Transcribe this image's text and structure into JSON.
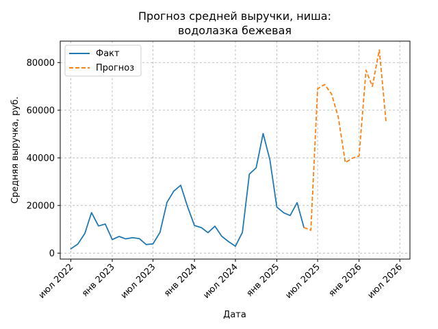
{
  "chart_data": {
    "type": "line",
    "title_line1": "Прогноз средней выручки, ниша:",
    "title_line2": "водолазка бежевая",
    "xlabel": "Дата",
    "ylabel": "Средняя выручка, руб.",
    "ylim": [
      -2500,
      89000
    ],
    "xlim": [
      "2022-05-15",
      "2026-08-15"
    ],
    "grid": true,
    "legend_position": "top-left",
    "x_ticks": [
      {
        "date": "2022-07-01",
        "label": "июл 2022"
      },
      {
        "date": "2023-01-01",
        "label": "янв 2023"
      },
      {
        "date": "2023-07-01",
        "label": "июл 2023"
      },
      {
        "date": "2024-01-01",
        "label": "янв 2024"
      },
      {
        "date": "2024-07-01",
        "label": "июл 2024"
      },
      {
        "date": "2025-01-01",
        "label": "янв 2025"
      },
      {
        "date": "2025-07-01",
        "label": "июл 2025"
      },
      {
        "date": "2026-01-01",
        "label": "янв 2026"
      },
      {
        "date": "2026-07-01",
        "label": "июл 2026"
      }
    ],
    "y_ticks": [
      {
        "value": 0,
        "label": "0"
      },
      {
        "value": 20000,
        "label": "20000"
      },
      {
        "value": 40000,
        "label": "40000"
      },
      {
        "value": 60000,
        "label": "60000"
      },
      {
        "value": 80000,
        "label": "80000"
      }
    ],
    "series": [
      {
        "name": "Факт",
        "color": "#1f77b4",
        "style": "solid",
        "points": [
          [
            "2022-07-01",
            1800
          ],
          [
            "2022-08-01",
            3800
          ],
          [
            "2022-09-01",
            8200
          ],
          [
            "2022-10-01",
            17000
          ],
          [
            "2022-11-01",
            11400
          ],
          [
            "2022-12-01",
            12200
          ],
          [
            "2023-01-01",
            5700
          ],
          [
            "2023-02-01",
            7000
          ],
          [
            "2023-03-01",
            6000
          ],
          [
            "2023-04-01",
            6500
          ],
          [
            "2023-05-01",
            6100
          ],
          [
            "2023-06-01",
            3600
          ],
          [
            "2023-07-01",
            3900
          ],
          [
            "2023-08-01",
            8700
          ],
          [
            "2023-09-01",
            21300
          ],
          [
            "2023-10-01",
            26000
          ],
          [
            "2023-11-01",
            28500
          ],
          [
            "2023-12-01",
            19600
          ],
          [
            "2024-01-01",
            11600
          ],
          [
            "2024-02-01",
            10700
          ],
          [
            "2024-03-01",
            8600
          ],
          [
            "2024-04-01",
            11300
          ],
          [
            "2024-05-01",
            7100
          ],
          [
            "2024-06-01",
            4800
          ],
          [
            "2024-07-01",
            2900
          ],
          [
            "2024-08-01",
            8700
          ],
          [
            "2024-09-01",
            33200
          ],
          [
            "2024-10-01",
            35800
          ],
          [
            "2024-11-01",
            50200
          ],
          [
            "2024-12-01",
            39200
          ],
          [
            "2025-01-01",
            19300
          ],
          [
            "2025-02-01",
            16900
          ],
          [
            "2025-03-01",
            15800
          ],
          [
            "2025-04-01",
            21200
          ],
          [
            "2025-05-01",
            10800
          ]
        ]
      },
      {
        "name": "Прогноз",
        "color": "#ff7f0e",
        "style": "dashed",
        "points": [
          [
            "2025-05-01",
            10800
          ],
          [
            "2025-06-01",
            9600
          ],
          [
            "2025-07-01",
            69000
          ],
          [
            "2025-08-01",
            70800
          ],
          [
            "2025-09-01",
            66800
          ],
          [
            "2025-10-01",
            57000
          ],
          [
            "2025-11-01",
            38000
          ],
          [
            "2025-12-01",
            39800
          ],
          [
            "2026-01-01",
            40800
          ],
          [
            "2026-02-01",
            76800
          ],
          [
            "2026-03-01",
            70000
          ],
          [
            "2026-04-01",
            85300
          ],
          [
            "2026-05-01",
            55000
          ]
        ]
      }
    ]
  }
}
